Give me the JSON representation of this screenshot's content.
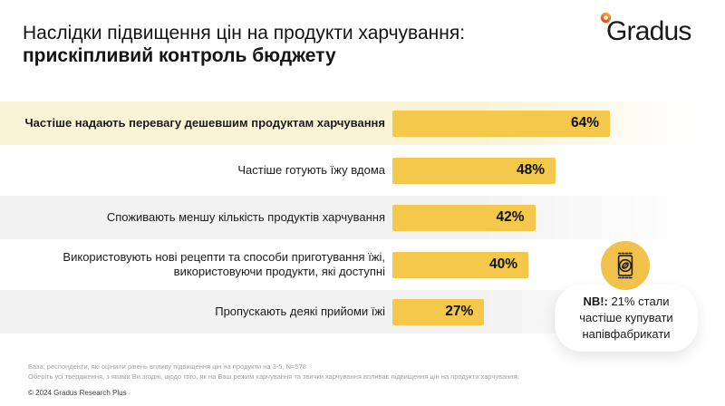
{
  "header": {
    "title_line1": "Наслідки підвищення цін на продукти харчування:",
    "title_line2": "прискіпливий контроль бюджету",
    "logo_text": "Gradus",
    "logo_ring_colors": {
      "top": "#F7A233",
      "bottom": "#E8491D"
    }
  },
  "chart_data": {
    "type": "bar",
    "orientation": "horizontal",
    "unit": "%",
    "title": "Наслідки підвищення цін на продукти харчування: прискіпливий контроль бюджету",
    "categories": [
      "Частіше надають перевагу дешевшим продуктам харчування",
      "Частіше готують їжу вдома",
      "Споживають меншу кількість продуктів харчування",
      "Використовують нові рецепти та способи приготування їжі,\nвикористовуючи продукти, які доступні",
      "Пропускають деякі прийоми їжі"
    ],
    "values": [
      64,
      48,
      42,
      40,
      27
    ],
    "value_labels": [
      "64%",
      "48%",
      "42%",
      "40%",
      "27%"
    ],
    "xlim": [
      0,
      100
    ],
    "bar_color": "#F3C84B",
    "row_band_colors": [
      "#FAF3D5",
      null,
      "#F2F2F2",
      null,
      "#F2F2F2"
    ],
    "grid": false,
    "legend": false
  },
  "callout": {
    "icon": "food-package-icon",
    "circle_color": "#F0C24B",
    "prefix": "NB!:",
    "text": " 21% стали частіше купувати напівфабрикати"
  },
  "footer": {
    "base_line": "База: респонденти, які оцінили рівень впливу підвищення цін на продукти на 3-5, N=578",
    "question_line": "Оберіть усі твердження, з якими Ви згодні, щодо того, як на Ваш режим харчування та звички харчування впливає підвищення цін на продукти харчування:",
    "copyright": "© 2024 Gradus Research Plus"
  }
}
